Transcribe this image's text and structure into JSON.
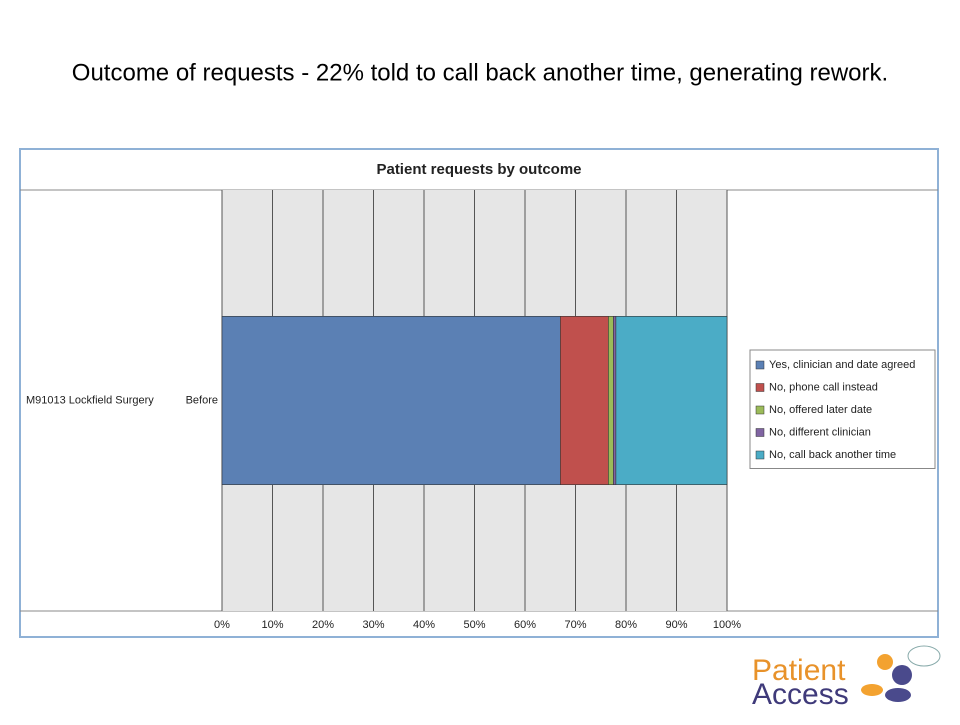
{
  "slide_title": "Outcome of requests - 22% told to call back another time, generating rework.",
  "chart_data": {
    "type": "stacked-bar-horizontal",
    "title": "Patient requests by outcome",
    "category_groups": [
      "M91013 Lockfield Surgery"
    ],
    "categories": [
      "Before"
    ],
    "series": [
      {
        "name": "Yes, clinician and date agreed",
        "color": "#5b80b4",
        "values": [
          67
        ]
      },
      {
        "name": "No, phone call instead",
        "color": "#c0504d",
        "values": [
          9.5
        ]
      },
      {
        "name": "No, offered later date",
        "color": "#9bbb59",
        "values": [
          1
        ]
      },
      {
        "name": "No, different clinician",
        "color": "#8064a2",
        "values": [
          0.5
        ]
      },
      {
        "name": "No, call back another time",
        "color": "#4bacc6",
        "values": [
          22
        ]
      }
    ],
    "xlim": [
      0,
      100
    ],
    "xticks": [
      {
        "value": 0,
        "label": "0%"
      },
      {
        "value": 10,
        "label": "10%"
      },
      {
        "value": 20,
        "label": "20%"
      },
      {
        "value": 30,
        "label": "30%"
      },
      {
        "value": 40,
        "label": "40%"
      },
      {
        "value": 50,
        "label": "50%"
      },
      {
        "value": 60,
        "label": "60%"
      },
      {
        "value": 70,
        "label": "70%"
      },
      {
        "value": 80,
        "label": "80%"
      },
      {
        "value": 90,
        "label": "90%"
      },
      {
        "value": 100,
        "label": "100%"
      }
    ],
    "grid": true,
    "legend": "right"
  },
  "logo": {
    "line1": "Patient",
    "line2": "Access"
  }
}
